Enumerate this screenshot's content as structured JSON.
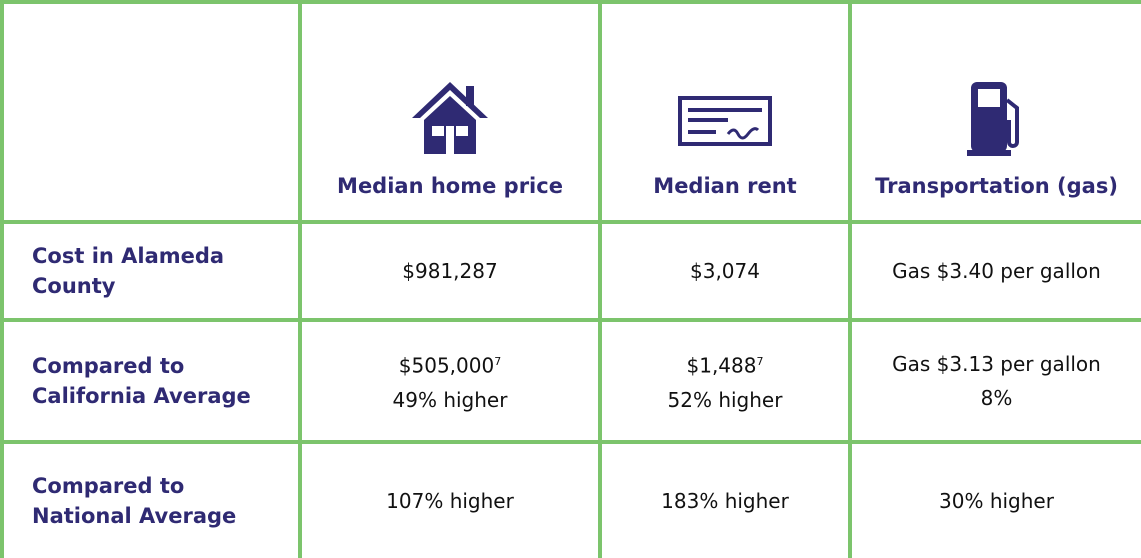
{
  "table": {
    "columns": [
      "Median home price",
      "Median rent",
      "Transportation (gas)"
    ],
    "rows": [
      {
        "label": "Cost in Alameda County",
        "cells": [
          {
            "value": "$981,287"
          },
          {
            "value": "$3,074"
          },
          {
            "value": "Gas $3.40 per gallon"
          }
        ]
      },
      {
        "label": "Compared to California Average",
        "cells": [
          {
            "value": "$505,000",
            "note": "7",
            "detail": "49% higher"
          },
          {
            "value": "$1,488",
            "note": "7",
            "detail": "52% higher"
          },
          {
            "value": "Gas $3.13 per gallon",
            "detail": "8%"
          }
        ]
      },
      {
        "label": "Compared to National Average",
        "cells": [
          {
            "value": "107% higher"
          },
          {
            "value": "183% higher"
          },
          {
            "value": "30% higher"
          }
        ]
      }
    ]
  }
}
